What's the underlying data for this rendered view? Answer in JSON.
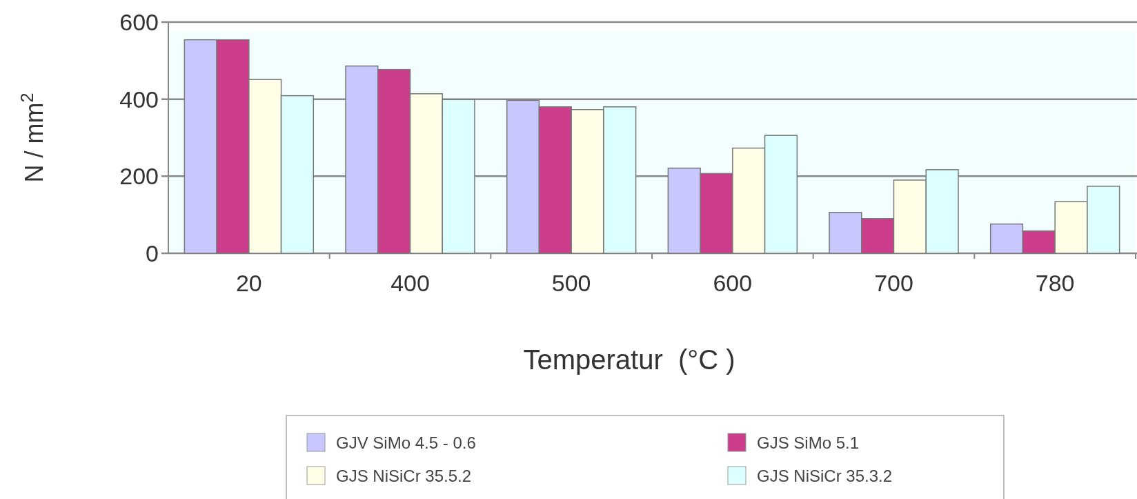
{
  "chart_data": {
    "type": "bar",
    "xlabel": "Temperatur  (°C )",
    "ylabel": "N / mm$^{2}$",
    "categories": [
      "20",
      "400",
      "500",
      "600",
      "700",
      "780"
    ],
    "series": [
      {
        "name": "GJV SiMo 4.5 - 0.6",
        "color": "#c8c8ff",
        "values": [
          554,
          486,
          397,
          221,
          106,
          76
        ]
      },
      {
        "name": "GJS SiMo 5.1",
        "color": "#cc3d8c",
        "values": [
          554,
          477,
          380,
          207,
          90,
          58
        ]
      },
      {
        "name": "GJS NiSiCr 35.5.2",
        "color": "#ffffe8",
        "values": [
          451,
          414,
          373,
          273,
          190,
          134
        ]
      },
      {
        "name": "GJS NiSiCr 35.3.2",
        "color": "#dcffff",
        "values": [
          409,
          399,
          380,
          306,
          217,
          174
        ]
      }
    ],
    "ylim": [
      0,
      600
    ],
    "yticks": [
      0,
      200,
      400,
      600
    ],
    "grid": "y",
    "legend": "bottom"
  }
}
